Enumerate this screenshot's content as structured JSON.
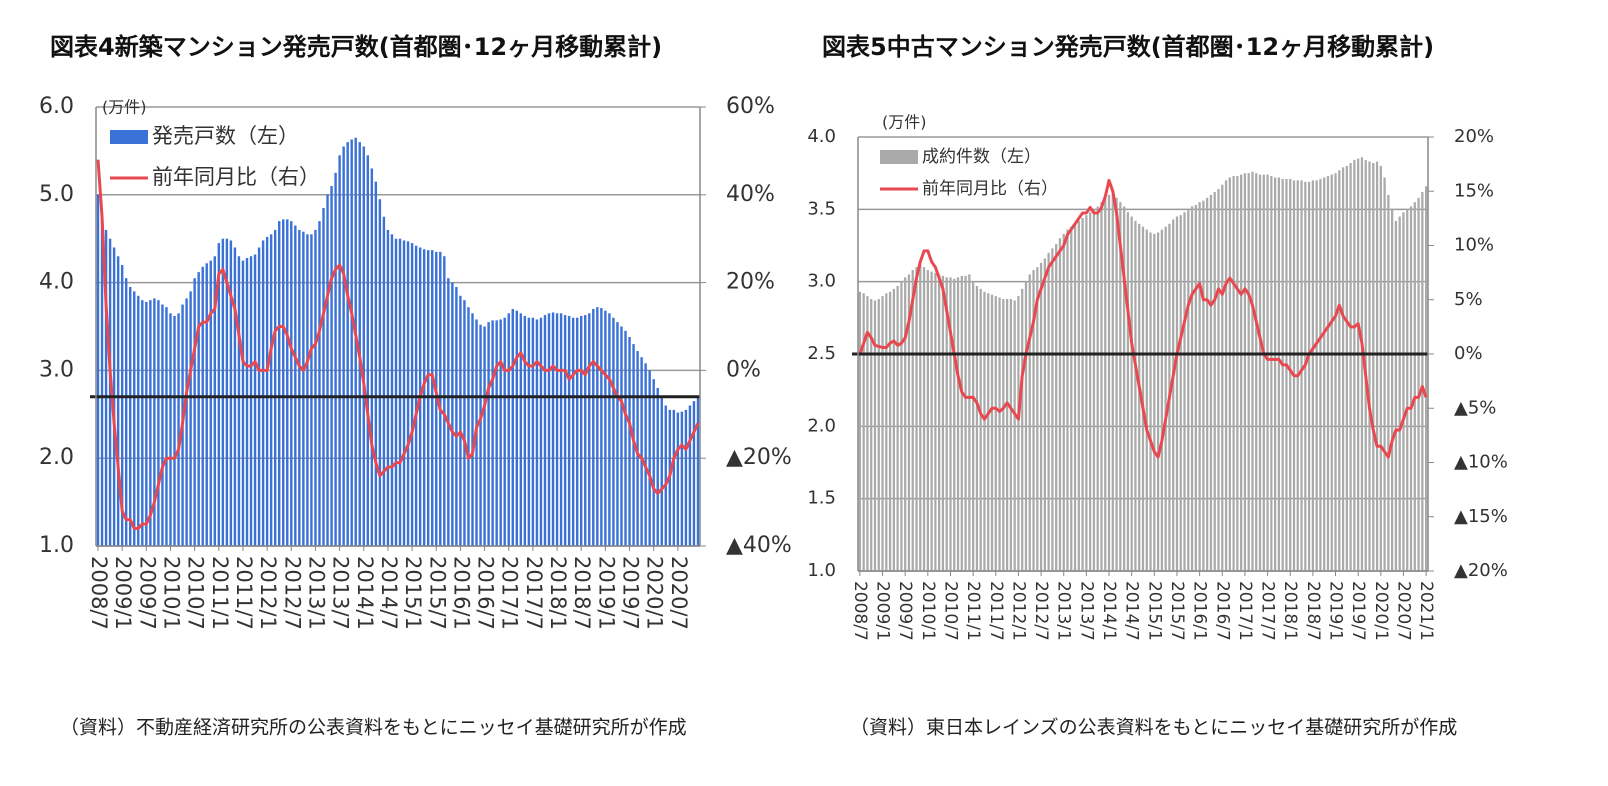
{
  "chart_data": [
    {
      "type": "bar-line",
      "title": "図表4新築マンション発売戸数(首都圏･12ヶ月移動累計)",
      "y_unit": "(万件)",
      "categories": [
        "2008/7",
        null,
        null,
        null,
        null,
        null,
        "2009/1",
        null,
        null,
        null,
        null,
        null,
        "2009/7",
        null,
        null,
        null,
        null,
        null,
        "2010/1",
        null,
        null,
        null,
        null,
        null,
        "2010/7",
        null,
        null,
        null,
        null,
        null,
        "2011/1",
        null,
        null,
        null,
        null,
        null,
        "2011/7",
        null,
        null,
        null,
        null,
        null,
        "2012/1",
        null,
        null,
        null,
        null,
        null,
        "2012/7",
        null,
        null,
        null,
        null,
        null,
        "2013/1",
        null,
        null,
        null,
        null,
        null,
        "2013/7",
        null,
        null,
        null,
        null,
        null,
        "2014/1",
        null,
        null,
        null,
        null,
        null,
        "2014/7",
        null,
        null,
        null,
        null,
        null,
        "2015/1",
        null,
        null,
        null,
        null,
        null,
        "2015/7",
        null,
        null,
        null,
        null,
        null,
        "2016/1",
        null,
        null,
        null,
        null,
        null,
        "2016/7",
        null,
        null,
        null,
        null,
        null,
        "2017/1",
        null,
        null,
        null,
        null,
        null,
        "2017/7",
        null,
        null,
        null,
        null,
        null,
        "2018/1",
        null,
        null,
        null,
        null,
        null,
        "2018/7",
        null,
        null,
        null,
        null,
        null,
        "2019/1",
        null,
        null,
        null,
        null,
        null,
        "2019/7",
        null,
        null,
        null,
        null,
        null,
        "2020/1",
        null,
        null,
        null,
        null,
        null,
        "2020/7",
        null,
        null,
        null,
        null,
        null
      ],
      "series": [
        {
          "name": "発売戸数（左）",
          "color": "#3a72d8",
          "kind": "bar",
          "values": [
            5.0,
            4.75,
            4.6,
            4.5,
            4.4,
            4.3,
            4.2,
            4.05,
            3.95,
            3.9,
            3.85,
            3.8,
            3.78,
            3.8,
            3.82,
            3.8,
            3.75,
            3.72,
            3.65,
            3.62,
            3.65,
            3.75,
            3.82,
            3.9,
            4.05,
            4.12,
            4.18,
            4.22,
            4.25,
            4.3,
            4.45,
            4.5,
            4.5,
            4.48,
            4.4,
            4.3,
            4.25,
            4.28,
            4.3,
            4.32,
            4.4,
            4.48,
            4.52,
            4.55,
            4.6,
            4.7,
            4.72,
            4.72,
            4.7,
            4.65,
            4.6,
            4.58,
            4.55,
            4.55,
            4.6,
            4.7,
            4.85,
            5.0,
            5.1,
            5.25,
            5.45,
            5.55,
            5.6,
            5.63,
            5.65,
            5.6,
            5.55,
            5.45,
            5.3,
            5.15,
            4.95,
            4.75,
            4.6,
            4.55,
            4.5,
            4.5,
            4.48,
            4.47,
            4.45,
            4.42,
            4.4,
            4.38,
            4.37,
            4.37,
            4.35,
            4.35,
            4.3,
            4.05,
            4.0,
            3.95,
            3.85,
            3.8,
            3.72,
            3.65,
            3.58,
            3.52,
            3.5,
            3.55,
            3.57,
            3.57,
            3.58,
            3.6,
            3.65,
            3.7,
            3.68,
            3.65,
            3.62,
            3.6,
            3.6,
            3.58,
            3.6,
            3.63,
            3.65,
            3.66,
            3.65,
            3.65,
            3.63,
            3.62,
            3.6,
            3.6,
            3.62,
            3.63,
            3.65,
            3.7,
            3.72,
            3.71,
            3.68,
            3.65,
            3.6,
            3.55,
            3.5,
            3.45,
            3.38,
            3.3,
            3.22,
            3.15,
            3.08,
            3.0,
            2.9,
            2.8,
            2.7,
            2.6,
            2.55,
            2.55,
            2.52,
            2.53,
            2.55,
            2.6,
            2.65,
            2.7
          ]
        },
        {
          "name": "前年同月比（右）",
          "color": "#e8484f",
          "kind": "line",
          "axis": "y2",
          "values": [
            48,
            35,
            15,
            0,
            -12,
            -22,
            -32,
            -34,
            -34,
            -36,
            -36,
            -35,
            -35,
            -33,
            -30,
            -26,
            -22,
            -20,
            -20,
            -20,
            -18,
            -12,
            -5,
            0,
            5,
            10,
            11,
            11,
            13,
            14,
            22,
            23,
            20,
            17,
            14,
            8,
            2,
            1,
            1,
            2,
            0,
            0,
            0,
            5,
            9,
            10,
            10,
            8,
            5,
            3,
            1,
            0,
            2,
            5,
            6,
            9,
            13,
            17,
            21,
            23,
            24,
            22,
            17,
            13,
            8,
            3,
            -3,
            -10,
            -17,
            -21,
            -24,
            -23,
            -22,
            -22,
            -21,
            -21,
            -19,
            -17,
            -14,
            -10,
            -6,
            -3,
            -1,
            -1,
            -5,
            -9,
            -10,
            -12,
            -14,
            -15,
            -14,
            -16,
            -20,
            -19,
            -13,
            -11,
            -8,
            -4,
            -2,
            1,
            2,
            0,
            0,
            1,
            3,
            4,
            2,
            1,
            1,
            2,
            1,
            0,
            0,
            1,
            0,
            0,
            0,
            -2,
            -1,
            0,
            0,
            -1,
            1,
            2,
            1,
            0,
            -1,
            -2,
            -4,
            -6,
            -7,
            -10,
            -12,
            -16,
            -19,
            -20,
            -22,
            -24,
            -27,
            -28,
            -27,
            -26,
            -24,
            -20,
            -18,
            -17,
            -18,
            -16,
            -14,
            -12
          ]
        }
      ],
      "ylim": [
        1,
        6
      ],
      "yticks": [
        {
          "value": 1,
          "label": "1.0"
        },
        {
          "value": 2,
          "label": "2.0"
        },
        {
          "value": 3,
          "label": "3.0"
        },
        {
          "value": 4,
          "label": "4.0"
        },
        {
          "value": 5,
          "label": "5.0"
        },
        {
          "value": 6,
          "label": "6.0"
        }
      ],
      "y2lim": [
        -40,
        60
      ],
      "y2ticks": [
        {
          "value": -40,
          "label": "▲40%"
        },
        {
          "value": -20,
          "label": "▲20%"
        },
        {
          "value": 0,
          "label": "0%"
        },
        {
          "value": 20,
          "label": "20%"
        },
        {
          "value": 40,
          "label": "40%"
        },
        {
          "value": 60,
          "label": "60%"
        }
      ],
      "reference_line": {
        "axis": "y",
        "value": 2.7
      },
      "grid": true
    },
    {
      "type": "bar-line",
      "title": "図表5中古マンション発売戸数(首都圏･12ヶ月移動累計)",
      "y_unit": "(万件)",
      "categories": [
        "2008/7",
        null,
        null,
        null,
        null,
        null,
        "2009/1",
        null,
        null,
        null,
        null,
        null,
        "2009/7",
        null,
        null,
        null,
        null,
        null,
        "2010/1",
        null,
        null,
        null,
        null,
        null,
        "2010/7",
        null,
        null,
        null,
        null,
        null,
        "2011/1",
        null,
        null,
        null,
        null,
        null,
        "2011/7",
        null,
        null,
        null,
        null,
        null,
        "2012/1",
        null,
        null,
        null,
        null,
        null,
        "2012/7",
        null,
        null,
        null,
        null,
        null,
        "2013/1",
        null,
        null,
        null,
        null,
        null,
        "2013/7",
        null,
        null,
        null,
        null,
        null,
        "2014/1",
        null,
        null,
        null,
        null,
        null,
        "2014/7",
        null,
        null,
        null,
        null,
        null,
        "2015/1",
        null,
        null,
        null,
        null,
        null,
        "2015/7",
        null,
        null,
        null,
        null,
        null,
        "2016/1",
        null,
        null,
        null,
        null,
        null,
        "2016/7",
        null,
        null,
        null,
        null,
        null,
        "2017/1",
        null,
        null,
        null,
        null,
        null,
        "2017/7",
        null,
        null,
        null,
        null,
        null,
        "2018/1",
        null,
        null,
        null,
        null,
        null,
        "2018/7",
        null,
        null,
        null,
        null,
        null,
        "2019/1",
        null,
        null,
        null,
        null,
        null,
        "2019/7",
        null,
        null,
        null,
        null,
        null,
        "2020/1",
        null,
        null,
        null,
        null,
        null,
        "2020/7",
        null,
        null,
        null,
        null,
        null,
        "2021/1"
      ],
      "series": [
        {
          "name": "成約件数（左）",
          "color": "#aaaaaa",
          "kind": "bar",
          "values": [
            2.93,
            2.92,
            2.9,
            2.88,
            2.87,
            2.88,
            2.9,
            2.92,
            2.93,
            2.95,
            2.97,
            3.0,
            3.03,
            3.05,
            3.08,
            3.1,
            3.12,
            3.1,
            3.08,
            3.07,
            3.06,
            3.05,
            3.04,
            3.03,
            3.03,
            3.02,
            3.03,
            3.04,
            3.04,
            3.05,
            3.0,
            2.97,
            2.95,
            2.93,
            2.92,
            2.91,
            2.9,
            2.89,
            2.88,
            2.88,
            2.88,
            2.87,
            2.9,
            2.95,
            3.0,
            3.05,
            3.08,
            3.1,
            3.13,
            3.16,
            3.2,
            3.23,
            3.26,
            3.3,
            3.33,
            3.36,
            3.38,
            3.4,
            3.42,
            3.44,
            3.46,
            3.48,
            3.5,
            3.52,
            3.55,
            3.58,
            3.6,
            3.6,
            3.58,
            3.55,
            3.52,
            3.48,
            3.45,
            3.42,
            3.4,
            3.38,
            3.36,
            3.34,
            3.33,
            3.34,
            3.36,
            3.38,
            3.4,
            3.43,
            3.45,
            3.46,
            3.48,
            3.5,
            3.52,
            3.53,
            3.55,
            3.56,
            3.58,
            3.6,
            3.62,
            3.64,
            3.67,
            3.7,
            3.72,
            3.73,
            3.73,
            3.74,
            3.75,
            3.75,
            3.76,
            3.75,
            3.74,
            3.74,
            3.74,
            3.73,
            3.72,
            3.72,
            3.71,
            3.71,
            3.71,
            3.7,
            3.7,
            3.7,
            3.69,
            3.69,
            3.7,
            3.7,
            3.71,
            3.72,
            3.73,
            3.74,
            3.75,
            3.77,
            3.79,
            3.8,
            3.82,
            3.84,
            3.85,
            3.86,
            3.84,
            3.83,
            3.82,
            3.83,
            3.8,
            3.72,
            3.6,
            3.5,
            3.42,
            3.45,
            3.48,
            3.5,
            3.52,
            3.55,
            3.58,
            3.62,
            3.66
          ]
        },
        {
          "name": "前年同月比（右）",
          "color": "#e8484f",
          "kind": "line",
          "axis": "y2",
          "values": [
            0,
            1,
            2,
            1.5,
            0.8,
            0.7,
            0.6,
            0.6,
            1,
            1.2,
            0.8,
            1,
            1.5,
            3,
            5,
            7,
            8.5,
            9.5,
            9.5,
            8.5,
            8,
            7,
            6,
            4,
            2,
            0,
            -2,
            -3.5,
            -4,
            -4,
            -4,
            -4.5,
            -5.5,
            -6,
            -5.5,
            -5,
            -5,
            -5.3,
            -5,
            -4.5,
            -5,
            -5.5,
            -6,
            -2,
            0,
            1.5,
            3,
            5,
            6,
            7,
            8,
            8.5,
            9,
            9.5,
            10,
            11,
            11.5,
            12,
            12.5,
            13,
            13,
            13.5,
            13,
            13,
            13.5,
            14.5,
            16,
            15,
            13,
            10,
            7,
            4,
            1,
            -1,
            -3,
            -5,
            -7,
            -8,
            -9,
            -9.5,
            -8,
            -6,
            -4,
            -2,
            0,
            1.5,
            3,
            4.5,
            5.5,
            6,
            6.5,
            5,
            5,
            4.5,
            5,
            6,
            5.5,
            6.5,
            7,
            6.5,
            6,
            5.5,
            6,
            5.5,
            4.5,
            3,
            1.5,
            0,
            -0.5,
            -0.5,
            -0.5,
            -0.5,
            -1,
            -1,
            -1.5,
            -2,
            -2,
            -1.5,
            -1,
            0,
            0.5,
            1,
            1.5,
            2,
            2.5,
            3,
            3.5,
            4.5,
            3.5,
            3,
            2.5,
            2.5,
            2.8,
            1,
            -2,
            -5,
            -7,
            -8.5,
            -8.5,
            -9,
            -9.5,
            -8,
            -7,
            -7,
            -6,
            -5,
            -5,
            -4,
            -4,
            -3,
            -4
          ]
        }
      ],
      "ylim": [
        1,
        4
      ],
      "yticks": [
        {
          "value": 1,
          "label": "1.0"
        },
        1.5,
        {
          "value": 2,
          "label": "2.0"
        },
        2.5,
        {
          "value": 3,
          "label": "3.0"
        },
        3.5,
        {
          "value": 4,
          "label": "4.0"
        }
      ],
      "y2lim": [
        -20,
        20
      ],
      "y2ticks": [
        {
          "value": -20,
          "label": "▲20%"
        },
        {
          "value": -15,
          "label": "▲15%"
        },
        {
          "value": -10,
          "label": "▲10%"
        },
        {
          "value": -5,
          "label": "▲5%"
        },
        {
          "value": 0,
          "label": "0%"
        },
        {
          "value": 5,
          "label": "5%"
        },
        {
          "value": 10,
          "label": "10%"
        },
        {
          "value": 15,
          "label": "15%"
        },
        {
          "value": 20,
          "label": "20%"
        }
      ],
      "reference_line": {
        "axis": "y2",
        "value": 0
      },
      "grid": true
    }
  ],
  "notes": [
    "（資料）不動産経済研究所の公表資料をもとにニッセイ基礎研究所が作成",
    "（資料）東日本レインズの公表資料をもとにニッセイ基礎研究所が作成"
  ]
}
